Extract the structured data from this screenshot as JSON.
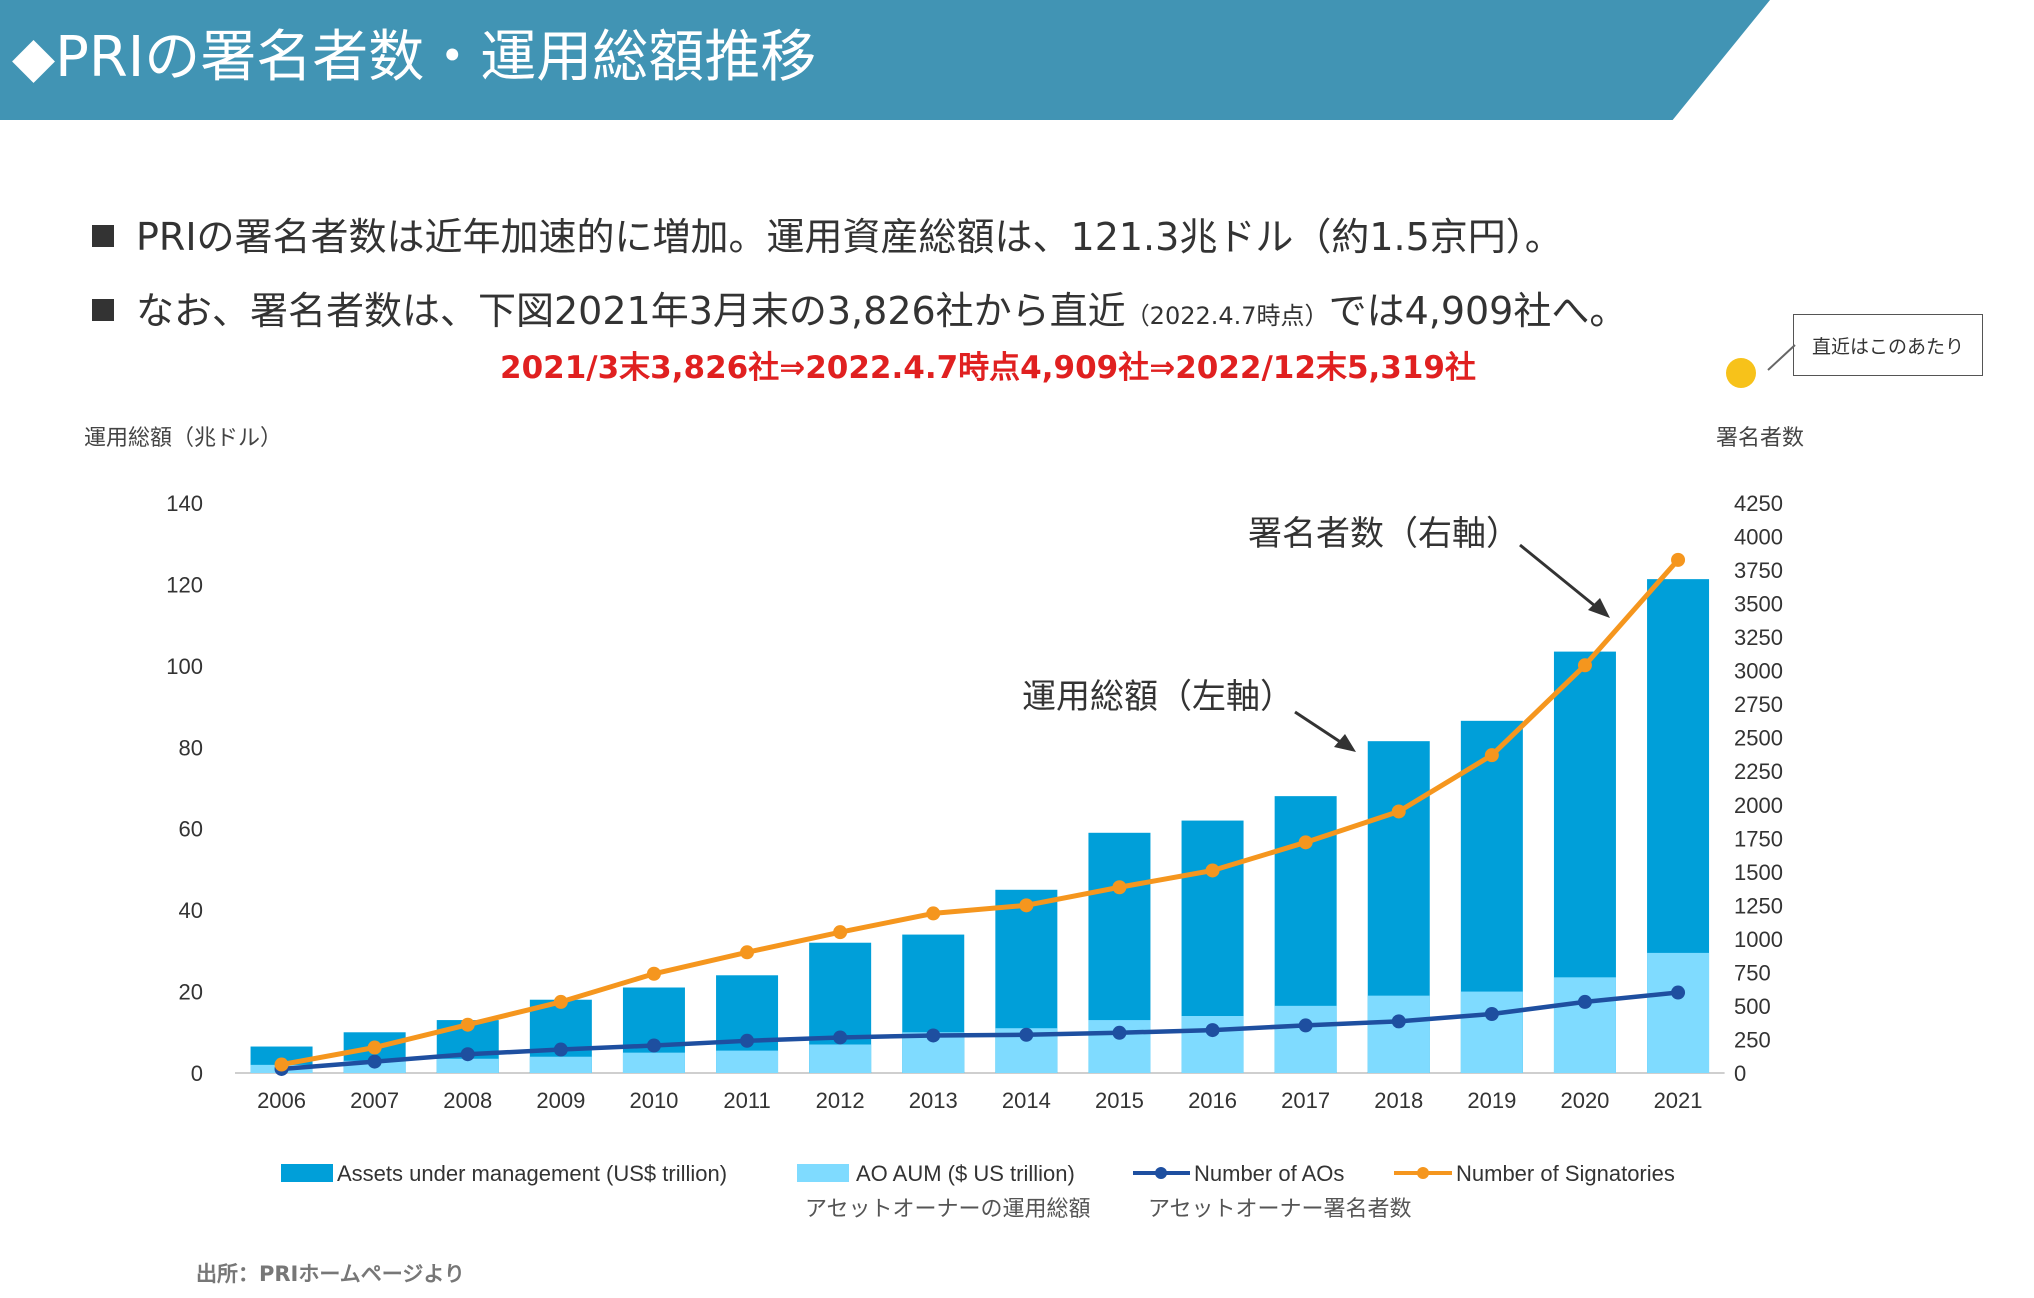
{
  "header": {
    "title": "◆PRIの署名者数・運用総額推移"
  },
  "bullets": [
    {
      "text": "PRIの署名者数は近年加速的に増加。運用資産総額は、121.3兆ドル（約1.5京円）。"
    },
    {
      "text_before": "なお、署名者数は、下図2021年3月末の3,826社から直近",
      "text_small": "（2022.4.7時点）",
      "text_after": "では4,909社へ。"
    }
  ],
  "highlight": "2021/3末3,826社⇒2022.4.7時点4,909社⇒2022/12末5,319社",
  "callout": {
    "label": "直近はこのあたり"
  },
  "axis_titles": {
    "left": "運用総額（兆ドル）",
    "right": "署名者数"
  },
  "annotations": {
    "signatories": "署名者数（右軸）",
    "aum": "運用総額（左軸）"
  },
  "jp_legend": {
    "ao_aum": "アセットオーナーの運用総額",
    "ao_count": "アセットオーナー署名者数"
  },
  "source": "出所：PRIホームページより",
  "chart_data": {
    "type": "bar",
    "title": "",
    "categories": [
      "2006",
      "2007",
      "2008",
      "2009",
      "2010",
      "2011",
      "2012",
      "2013",
      "2014",
      "2015",
      "2016",
      "2017",
      "2018",
      "2019",
      "2020",
      "2021"
    ],
    "ylim_left": [
      0,
      140
    ],
    "left_ticks": [
      0,
      20,
      40,
      60,
      80,
      100,
      120,
      140
    ],
    "ylim_right": [
      0,
      4250
    ],
    "right_ticks": [
      0,
      250,
      500,
      750,
      1000,
      1250,
      1500,
      1750,
      2000,
      2250,
      2500,
      2750,
      3000,
      3250,
      3500,
      3750,
      4000,
      4250
    ],
    "series": [
      {
        "name": "Assets under management (US$ trillion)",
        "kind": "bar",
        "axis": "left",
        "color": "#009fd9",
        "values": [
          6.5,
          10,
          13,
          18,
          21,
          24,
          32,
          34,
          45,
          59,
          62,
          68,
          81.5,
          86.5,
          103.5,
          121.3
        ]
      },
      {
        "name": "AO AUM ($ US trillion)",
        "kind": "bar",
        "axis": "left",
        "color": "#7fdbff",
        "values": [
          2,
          3,
          3.5,
          4,
          5,
          5.5,
          7,
          10,
          11,
          13,
          14,
          16.5,
          19,
          20,
          23.5,
          29.5
        ]
      },
      {
        "name": "Number of AOs",
        "kind": "line",
        "axis": "right",
        "color": "#1e4fa0",
        "values": [
          30,
          85,
          140,
          175,
          205,
          240,
          265,
          280,
          285,
          300,
          320,
          355,
          385,
          440,
          530,
          600
        ]
      },
      {
        "name": "Number of Signatories",
        "kind": "line",
        "axis": "right",
        "color": "#f5961e",
        "values": [
          63,
          190,
          360,
          530,
          740,
          900,
          1050,
          1190,
          1250,
          1385,
          1510,
          1720,
          1950,
          2370,
          3040,
          3826
        ]
      }
    ]
  }
}
